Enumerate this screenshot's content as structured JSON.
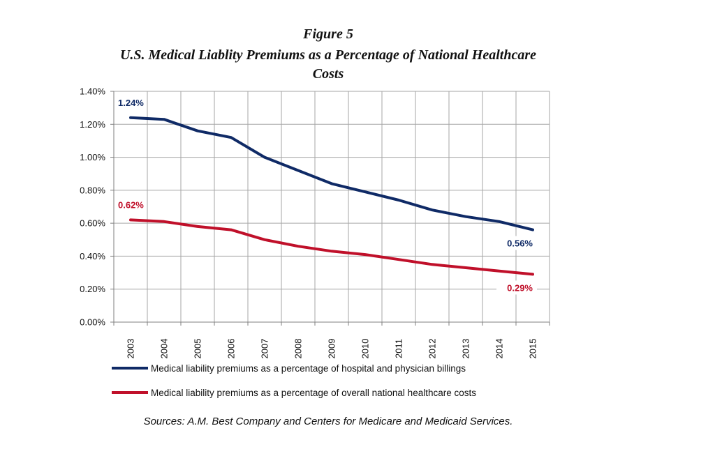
{
  "figure_label": "Figure 5",
  "chart_data": {
    "type": "line",
    "title": "U.S. Medical Liablity Premiums as a Percentage of National Healthcare Costs",
    "x": [
      "2003",
      "2004",
      "2005",
      "2006",
      "2007",
      "2008",
      "2009",
      "2010",
      "2011",
      "2012",
      "2013",
      "2014",
      "2015"
    ],
    "yticks": [
      "0.00%",
      "0.20%",
      "0.40%",
      "0.60%",
      "0.80%",
      "1.00%",
      "1.20%",
      "1.40%"
    ],
    "ylim": [
      0,
      1.4
    ],
    "y_unit": "%",
    "grid": true,
    "legend_position": "bottom",
    "series": [
      {
        "name": "Medical liability premiums as a percentage of hospital and physician billings",
        "color": "#0f2a66",
        "values": [
          1.24,
          1.23,
          1.16,
          1.12,
          1.0,
          0.92,
          0.84,
          0.79,
          0.74,
          0.68,
          0.64,
          0.61,
          0.56
        ],
        "labels": [
          {
            "index": 0,
            "text": "1.24%"
          },
          {
            "index": 12,
            "text": "0.56%"
          }
        ]
      },
      {
        "name": "Medical liability premiums as a percentage of overall national healthcare costs",
        "color": "#c0102a",
        "values": [
          0.62,
          0.61,
          0.58,
          0.56,
          0.5,
          0.46,
          0.43,
          0.41,
          0.38,
          0.35,
          0.33,
          0.31,
          0.29
        ],
        "labels": [
          {
            "index": 0,
            "text": "0.62%"
          },
          {
            "index": 12,
            "text": "0.29%"
          }
        ]
      }
    ]
  },
  "source_note": "Sources: A.M. Best Company and Centers for Medicare and Medicaid Services."
}
